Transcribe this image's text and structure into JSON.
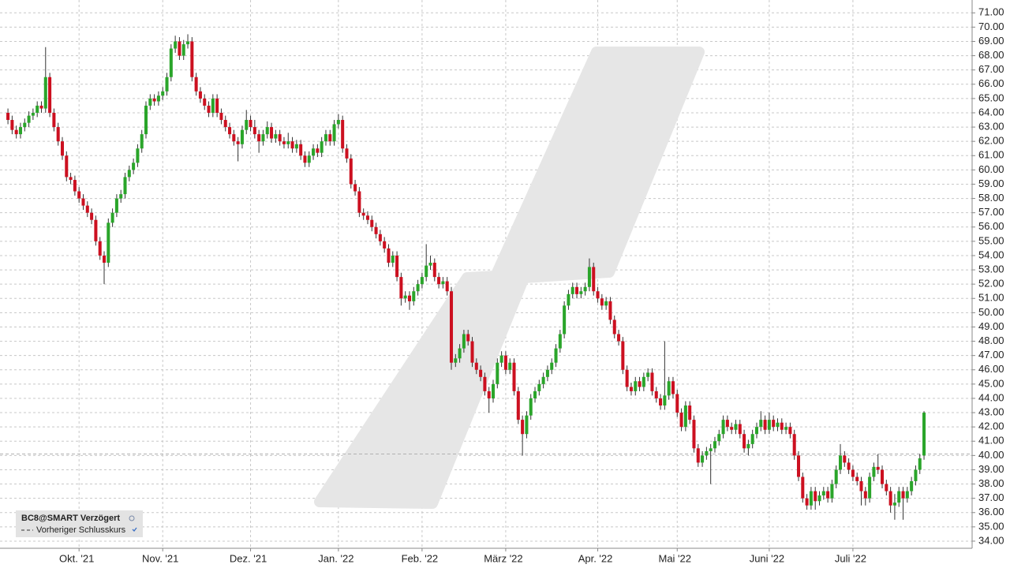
{
  "chart_data": {
    "type": "candlestick",
    "series_name": "BC8@SMART Verzögert",
    "reference_line": {
      "value": 40.1,
      "label": "Vorheriger Schlusskurs"
    },
    "up_color": "#2aa52a",
    "down_color": "#cc1020",
    "grid": true,
    "xlim": [
      -1.9,
      230.5
    ],
    "ylim": [
      33.5,
      71.9
    ],
    "xticks": [
      {
        "value": 17,
        "label": "Okt. '21"
      },
      {
        "value": 37,
        "label": "Nov. '21"
      },
      {
        "value": 58,
        "label": "Dez. '21"
      },
      {
        "value": 79,
        "label": "Jan. '22"
      },
      {
        "value": 99,
        "label": "Feb. '22"
      },
      {
        "value": 119,
        "label": "März '22"
      },
      {
        "value": 141,
        "label": "Apr. '22"
      },
      {
        "value": 160,
        "label": "Mai '22"
      },
      {
        "value": 182,
        "label": "Juni '22"
      },
      {
        "value": 202,
        "label": "Juli '22"
      }
    ],
    "yticks": [
      {
        "value": 34,
        "label": "34.00"
      },
      {
        "value": 35,
        "label": "35.00"
      },
      {
        "value": 36,
        "label": "36.00"
      },
      {
        "value": 37,
        "label": "37.00"
      },
      {
        "value": 38,
        "label": "38.00"
      },
      {
        "value": 39,
        "label": "39.00"
      },
      {
        "value": 40,
        "label": "40.00"
      },
      {
        "value": 41,
        "label": "41.00"
      },
      {
        "value": 42,
        "label": "42.00"
      },
      {
        "value": 43,
        "label": "43.00"
      },
      {
        "value": 44,
        "label": "44.00"
      },
      {
        "value": 45,
        "label": "45.00"
      },
      {
        "value": 46,
        "label": "46.00"
      },
      {
        "value": 47,
        "label": "47.00"
      },
      {
        "value": 48,
        "label": "48.00"
      },
      {
        "value": 49,
        "label": "49.00"
      },
      {
        "value": 50,
        "label": "50.00"
      },
      {
        "value": 51,
        "label": "51.00"
      },
      {
        "value": 52,
        "label": "52.00"
      },
      {
        "value": 53,
        "label": "53.00"
      },
      {
        "value": 54,
        "label": "54.00"
      },
      {
        "value": 55,
        "label": "55.00"
      },
      {
        "value": 56,
        "label": "56.00"
      },
      {
        "value": 57,
        "label": "57.00"
      },
      {
        "value": 58,
        "label": "58.00"
      },
      {
        "value": 59,
        "label": "59.00"
      },
      {
        "value": 60,
        "label": "60.00"
      },
      {
        "value": 61,
        "label": "61.00"
      },
      {
        "value": 62,
        "label": "62.00"
      },
      {
        "value": 63,
        "label": "63.00"
      },
      {
        "value": 64,
        "label": "64.00"
      },
      {
        "value": 65,
        "label": "65.00"
      },
      {
        "value": 66,
        "label": "66.00"
      },
      {
        "value": 67,
        "label": "67.00"
      },
      {
        "value": 68,
        "label": "68.00"
      },
      {
        "value": 69,
        "label": "69.00"
      },
      {
        "value": 70,
        "label": "70.00"
      },
      {
        "value": 71,
        "label": "71.00"
      }
    ],
    "ohlc": [
      [
        64,
        64.3,
        63.2,
        63.5
      ],
      [
        63.5,
        63.8,
        62.5,
        62.8
      ],
      [
        62.8,
        63.1,
        62.2,
        62.5
      ],
      [
        62.5,
        63.3,
        62.2,
        63
      ],
      [
        63,
        63.6,
        62.7,
        63.3
      ],
      [
        63.3,
        64.1,
        63,
        63.8
      ],
      [
        63.8,
        64.3,
        63.5,
        64
      ],
      [
        64,
        64.8,
        63.7,
        64.5
      ],
      [
        64.5,
        64.8,
        64,
        64.3
      ],
      [
        64.3,
        68.6,
        64,
        66.5
      ],
      [
        66.5,
        66.8,
        63.7,
        64
      ],
      [
        64,
        64.3,
        62.7,
        63
      ],
      [
        63,
        63.3,
        61.7,
        62
      ],
      [
        62,
        62.3,
        60.7,
        61
      ],
      [
        61,
        61.3,
        59.2,
        59.5
      ],
      [
        59.5,
        59.8,
        59,
        59.3
      ],
      [
        59.3,
        59.6,
        58.2,
        58.5
      ],
      [
        58.5,
        58.8,
        57.7,
        58
      ],
      [
        58,
        58.3,
        57.2,
        57.5
      ],
      [
        57.5,
        57.8,
        56.7,
        57
      ],
      [
        57,
        57.3,
        56.2,
        56.5
      ],
      [
        56.5,
        56.8,
        54.7,
        55
      ],
      [
        55,
        55.3,
        53.7,
        54
      ],
      [
        54,
        54.3,
        52,
        53.5
      ],
      [
        53.5,
        56.6,
        53.2,
        56.3
      ],
      [
        56.3,
        57.3,
        56,
        57
      ],
      [
        57,
        58.3,
        56.7,
        58
      ],
      [
        58,
        58.6,
        57.7,
        58.3
      ],
      [
        58.3,
        59.8,
        58,
        59.5
      ],
      [
        59.5,
        60.3,
        59.2,
        60
      ],
      [
        60,
        60.8,
        59.7,
        60.5
      ],
      [
        60.5,
        61.8,
        60.2,
        61.5
      ],
      [
        61.5,
        62.8,
        61.2,
        62.5
      ],
      [
        62.5,
        64.8,
        62.2,
        64.5
      ],
      [
        64.5,
        65.3,
        64.2,
        65
      ],
      [
        65,
        65.3,
        64.5,
        64.8
      ],
      [
        64.8,
        65.5,
        64.5,
        65.2
      ],
      [
        65.2,
        65.8,
        64.9,
        65.5
      ],
      [
        65.5,
        66.8,
        65.2,
        66.5
      ],
      [
        66.5,
        68.8,
        66.2,
        68.5
      ],
      [
        68.5,
        69.4,
        68.2,
        69
      ],
      [
        69,
        69.3,
        67.7,
        68
      ],
      [
        68,
        69.1,
        67.7,
        68.8
      ],
      [
        68.8,
        69.5,
        68.5,
        69
      ],
      [
        69,
        69.3,
        66.2,
        66.5
      ],
      [
        66.5,
        66.8,
        65.2,
        65.5
      ],
      [
        65.5,
        65.8,
        64.7,
        65
      ],
      [
        65,
        65.3,
        64.2,
        64.5
      ],
      [
        64.5,
        64.8,
        63.7,
        64
      ],
      [
        64,
        65.3,
        63.7,
        65
      ],
      [
        65,
        65.3,
        63.7,
        64
      ],
      [
        64,
        64.3,
        63.2,
        63.5
      ],
      [
        63.5,
        63.8,
        62.7,
        63
      ],
      [
        63,
        63.3,
        62.2,
        62.5
      ],
      [
        62.5,
        62.8,
        61.7,
        62
      ],
      [
        62,
        62.3,
        60.6,
        61.8
      ],
      [
        61.8,
        63.1,
        61.5,
        62.8
      ],
      [
        62.8,
        64.2,
        62.5,
        63.5
      ],
      [
        63.5,
        63.8,
        62.7,
        63
      ],
      [
        63,
        63.5,
        62.2,
        62.5
      ],
      [
        62.5,
        62.8,
        61.2,
        62
      ],
      [
        62,
        62.8,
        61.7,
        62.5
      ],
      [
        62.5,
        63.4,
        62.2,
        63
      ],
      [
        63,
        63.3,
        61.9,
        62.2
      ],
      [
        62.2,
        62.8,
        61.9,
        62.5
      ],
      [
        62.5,
        62.8,
        61.7,
        62
      ],
      [
        62,
        62.3,
        61.5,
        61.8
      ],
      [
        61.8,
        62.6,
        61.5,
        62
      ],
      [
        62,
        62.3,
        61.2,
        61.5
      ],
      [
        61.5,
        62.1,
        61.2,
        61.8
      ],
      [
        61.8,
        62.1,
        60.7,
        61
      ],
      [
        61,
        61.3,
        60.2,
        60.5
      ],
      [
        60.5,
        61.3,
        60.2,
        61
      ],
      [
        61,
        61.8,
        60.7,
        61.5
      ],
      [
        61.5,
        61.8,
        60.9,
        61.2
      ],
      [
        61.2,
        62.3,
        60.9,
        62
      ],
      [
        62,
        62.8,
        61.7,
        62.5
      ],
      [
        62.5,
        62.8,
        61.7,
        62
      ],
      [
        62,
        63.5,
        61.7,
        63.2
      ],
      [
        63.2,
        63.9,
        62.9,
        63.5
      ],
      [
        63.5,
        63.8,
        61.2,
        61.5
      ],
      [
        61.5,
        61.8,
        60.5,
        60.8
      ],
      [
        60.8,
        61.1,
        58.7,
        59
      ],
      [
        59,
        59.3,
        58.2,
        58.5
      ],
      [
        58.5,
        58.8,
        56.7,
        57
      ],
      [
        57,
        57.3,
        56.5,
        56.8
      ],
      [
        56.8,
        57.1,
        56.2,
        56.5
      ],
      [
        56.5,
        56.8,
        55.7,
        56
      ],
      [
        56,
        56.3,
        55.2,
        55.5
      ],
      [
        55.5,
        55.8,
        54.7,
        55
      ],
      [
        55,
        55.3,
        54.2,
        54.5
      ],
      [
        54.5,
        54.8,
        53.2,
        53.5
      ],
      [
        53.5,
        54.3,
        53.2,
        54
      ],
      [
        54,
        54.3,
        52.2,
        52.5
      ],
      [
        52.5,
        52.8,
        50.5,
        51
      ],
      [
        51,
        51.5,
        50.7,
        51.2
      ],
      [
        51.2,
        51.5,
        50.2,
        50.8
      ],
      [
        50.8,
        51.8,
        50.5,
        51.5
      ],
      [
        51.5,
        52.3,
        51.2,
        52
      ],
      [
        52,
        52.8,
        51.7,
        52.5
      ],
      [
        52.5,
        54.8,
        52.2,
        53.3
      ],
      [
        53.3,
        54,
        53,
        53.5
      ],
      [
        53.5,
        53.8,
        52.2,
        52.5
      ],
      [
        52.5,
        52.8,
        51.7,
        52
      ],
      [
        52,
        52.5,
        51.7,
        52.2
      ],
      [
        52.2,
        52.5,
        51.2,
        51.5
      ],
      [
        51.5,
        51.8,
        46,
        46.5
      ],
      [
        46.5,
        47.1,
        46.2,
        46.8
      ],
      [
        46.8,
        47.8,
        46.5,
        47.5
      ],
      [
        47.5,
        48.8,
        47.2,
        48.5
      ],
      [
        48.5,
        48.8,
        47.7,
        48
      ],
      [
        48,
        48.3,
        46.2,
        46.5
      ],
      [
        46.5,
        46.8,
        45.7,
        46
      ],
      [
        46,
        46.3,
        45.2,
        45.5
      ],
      [
        45.5,
        45.8,
        44.2,
        44.5
      ],
      [
        44.5,
        44.8,
        43,
        44
      ],
      [
        44,
        45.3,
        43.7,
        45
      ],
      [
        45,
        46.8,
        44.7,
        46.5
      ],
      [
        46.5,
        47.3,
        46.2,
        47
      ],
      [
        47,
        47.3,
        45.7,
        46
      ],
      [
        46,
        46.8,
        45.7,
        46.5
      ],
      [
        46.5,
        46.8,
        44.2,
        44.5
      ],
      [
        44.5,
        44.8,
        42.2,
        42.5
      ],
      [
        42.5,
        42.8,
        40,
        41.5
      ],
      [
        41.5,
        43.1,
        41.2,
        42.8
      ],
      [
        42.8,
        44.3,
        42.5,
        44
      ],
      [
        44,
        44.8,
        43.7,
        44.5
      ],
      [
        44.5,
        45.3,
        44.2,
        45
      ],
      [
        45,
        45.8,
        44.7,
        45.5
      ],
      [
        45.5,
        46.3,
        45.2,
        46
      ],
      [
        46,
        46.8,
        45.7,
        46.5
      ],
      [
        46.5,
        47.8,
        46.2,
        47.5
      ],
      [
        47.5,
        48.8,
        47.2,
        48.5
      ],
      [
        48.5,
        50.8,
        48.2,
        50.5
      ],
      [
        50.5,
        51.6,
        50.2,
        51.3
      ],
      [
        51.3,
        52.1,
        51,
        51.8
      ],
      [
        51.8,
        52.1,
        51,
        51.3
      ],
      [
        51.3,
        51.8,
        51,
        51.5
      ],
      [
        51.5,
        52.1,
        51.2,
        51.8
      ],
      [
        51.8,
        53.8,
        51.5,
        53.2
      ],
      [
        53.2,
        53.5,
        51.2,
        51.5
      ],
      [
        51.5,
        51.8,
        50.7,
        51
      ],
      [
        51,
        51.3,
        50.2,
        50.5
      ],
      [
        50.5,
        51.1,
        50.2,
        50.8
      ],
      [
        50.8,
        51.1,
        49.2,
        49.5
      ],
      [
        49.5,
        49.8,
        48.2,
        48.5
      ],
      [
        48.5,
        48.8,
        47.7,
        48
      ],
      [
        48,
        48.3,
        45.7,
        46
      ],
      [
        46,
        46.3,
        44.5,
        44.8
      ],
      [
        44.8,
        45.1,
        44.2,
        44.5
      ],
      [
        44.5,
        45.5,
        44.2,
        45.2
      ],
      [
        45.2,
        45.5,
        44.5,
        44.8
      ],
      [
        44.8,
        45.8,
        44.5,
        45.5
      ],
      [
        45.5,
        46.1,
        45.2,
        45.8
      ],
      [
        45.8,
        46.1,
        44.2,
        44.5
      ],
      [
        44.5,
        44.8,
        43.7,
        44
      ],
      [
        44,
        44.3,
        43.2,
        43.5
      ],
      [
        43.5,
        48,
        43.2,
        44.2
      ],
      [
        44.2,
        45.5,
        43.9,
        45.2
      ],
      [
        45.2,
        45.5,
        44,
        44.3
      ],
      [
        44.3,
        44.6,
        42.7,
        43
      ],
      [
        43,
        43.3,
        41.7,
        42
      ],
      [
        42,
        43.8,
        41.7,
        43.5
      ],
      [
        43.5,
        43.8,
        42.2,
        42.5
      ],
      [
        42.5,
        42.8,
        40.2,
        40.5
      ],
      [
        40.5,
        40.8,
        39.2,
        39.5
      ],
      [
        39.5,
        40.3,
        39.2,
        40
      ],
      [
        40,
        40.6,
        39.7,
        40.3
      ],
      [
        40.3,
        40.8,
        38,
        40.5
      ],
      [
        40.5,
        41.3,
        40.2,
        41
      ],
      [
        41,
        41.8,
        40.7,
        41.5
      ],
      [
        41.5,
        42.8,
        41.2,
        42.5
      ],
      [
        42.5,
        42.8,
        41.7,
        42
      ],
      [
        42,
        42.3,
        41.5,
        41.8
      ],
      [
        41.8,
        42.5,
        41.5,
        42.2
      ],
      [
        42.2,
        42.5,
        41.2,
        41.5
      ],
      [
        41.5,
        41.8,
        40.2,
        40.5
      ],
      [
        40.5,
        41.1,
        40,
        40.8
      ],
      [
        40.8,
        41.8,
        40.5,
        41.5
      ],
      [
        41.5,
        42.3,
        41.2,
        42
      ],
      [
        42,
        43.1,
        41.7,
        42.5
      ],
      [
        42.5,
        42.8,
        41.5,
        41.8
      ],
      [
        41.8,
        43,
        41.5,
        42.5
      ],
      [
        42.5,
        42.8,
        41.7,
        42
      ],
      [
        42,
        42.6,
        41.7,
        42.3
      ],
      [
        42.3,
        42.6,
        41.5,
        41.8
      ],
      [
        41.8,
        42.3,
        41.5,
        42
      ],
      [
        42,
        42.3,
        41.2,
        41.5
      ],
      [
        41.5,
        41.8,
        39.7,
        40
      ],
      [
        40,
        40.3,
        38.2,
        38.5
      ],
      [
        38.5,
        38.8,
        36.7,
        37
      ],
      [
        37,
        37.3,
        36.2,
        36.5
      ],
      [
        36.5,
        37.8,
        36.2,
        37.5
      ],
      [
        37.5,
        37.8,
        36.2,
        36.8
      ],
      [
        36.8,
        37.5,
        36.5,
        37.2
      ],
      [
        37.2,
        37.8,
        36.9,
        37.5
      ],
      [
        37.5,
        37.8,
        36.7,
        37
      ],
      [
        37,
        38.3,
        36.7,
        38
      ],
      [
        38,
        39.3,
        37.7,
        39
      ],
      [
        39,
        40.8,
        38.7,
        40
      ],
      [
        40,
        40.3,
        39.2,
        39.5
      ],
      [
        39.5,
        39.8,
        38.7,
        39
      ],
      [
        39,
        39.3,
        38.2,
        38.5
      ],
      [
        38.5,
        38.8,
        37.9,
        38.2
      ],
      [
        38.2,
        38.5,
        36.5,
        37.5
      ],
      [
        37.5,
        37.8,
        36.5,
        37
      ],
      [
        37,
        38.8,
        36.7,
        38.5
      ],
      [
        38.5,
        39.5,
        38.2,
        39.2
      ],
      [
        39.2,
        40.1,
        38.7,
        39
      ],
      [
        39,
        39.3,
        37.7,
        38
      ],
      [
        38,
        38.3,
        37.2,
        37.5
      ],
      [
        37.5,
        37.8,
        36,
        36.5
      ],
      [
        36.5,
        37.3,
        35.5,
        36.7
      ],
      [
        36.7,
        37.8,
        36.4,
        37.5
      ],
      [
        37.5,
        37.8,
        35.5,
        37
      ],
      [
        37,
        37.8,
        36.7,
        37.5
      ],
      [
        37.5,
        38.5,
        37.2,
        38.2
      ],
      [
        38.2,
        39.3,
        37.9,
        39
      ],
      [
        39,
        40.1,
        38.7,
        39.8
      ],
      [
        40,
        43.1,
        39.7,
        43
      ]
    ]
  }
}
